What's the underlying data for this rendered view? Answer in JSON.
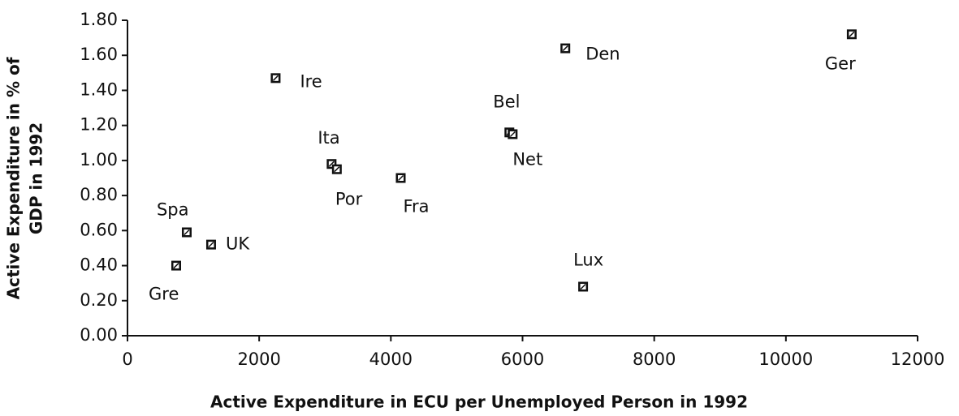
{
  "chart_data": {
    "type": "scatter",
    "xlabel": "Active Expenditure in ECU per Unemployed Person in 1992",
    "ylabel": [
      "Active Expenditure in % of",
      "GDP in 1992"
    ],
    "point_labels": [
      "Gre",
      "Spa",
      "UK",
      "Ire",
      "Ita",
      "Por",
      "Fra",
      "Bel",
      "Net",
      "Den",
      "Lux",
      "Ger"
    ],
    "x": [
      740,
      900,
      1270,
      2250,
      3100,
      3180,
      4150,
      5800,
      5850,
      6650,
      6920,
      11000
    ],
    "values": [
      0.4,
      0.59,
      0.52,
      1.47,
      0.98,
      0.95,
      0.9,
      1.16,
      1.15,
      1.64,
      0.28,
      1.72
    ],
    "color": "#111111",
    "xlim": [
      0,
      12000
    ],
    "xticks": [
      0,
      2000,
      4000,
      6000,
      8000,
      10000,
      12000
    ],
    "ylim": [
      0,
      1.8
    ],
    "yticks": [
      {
        "value": 0,
        "label": "0.00"
      },
      {
        "value": 0.2,
        "label": "0.20"
      },
      {
        "value": 0.4,
        "label": "0.40"
      },
      {
        "value": 0.6,
        "label": "0.60"
      },
      {
        "value": 0.8,
        "label": "0.80"
      },
      {
        "value": 1.0,
        "label": "1.00"
      },
      {
        "value": 1.2,
        "label": "1.20"
      },
      {
        "value": 1.4,
        "label": "1.40"
      },
      {
        "value": 1.6,
        "label": "1.60"
      },
      {
        "value": 1.8,
        "label": "1.80"
      }
    ],
    "grid": false
  }
}
